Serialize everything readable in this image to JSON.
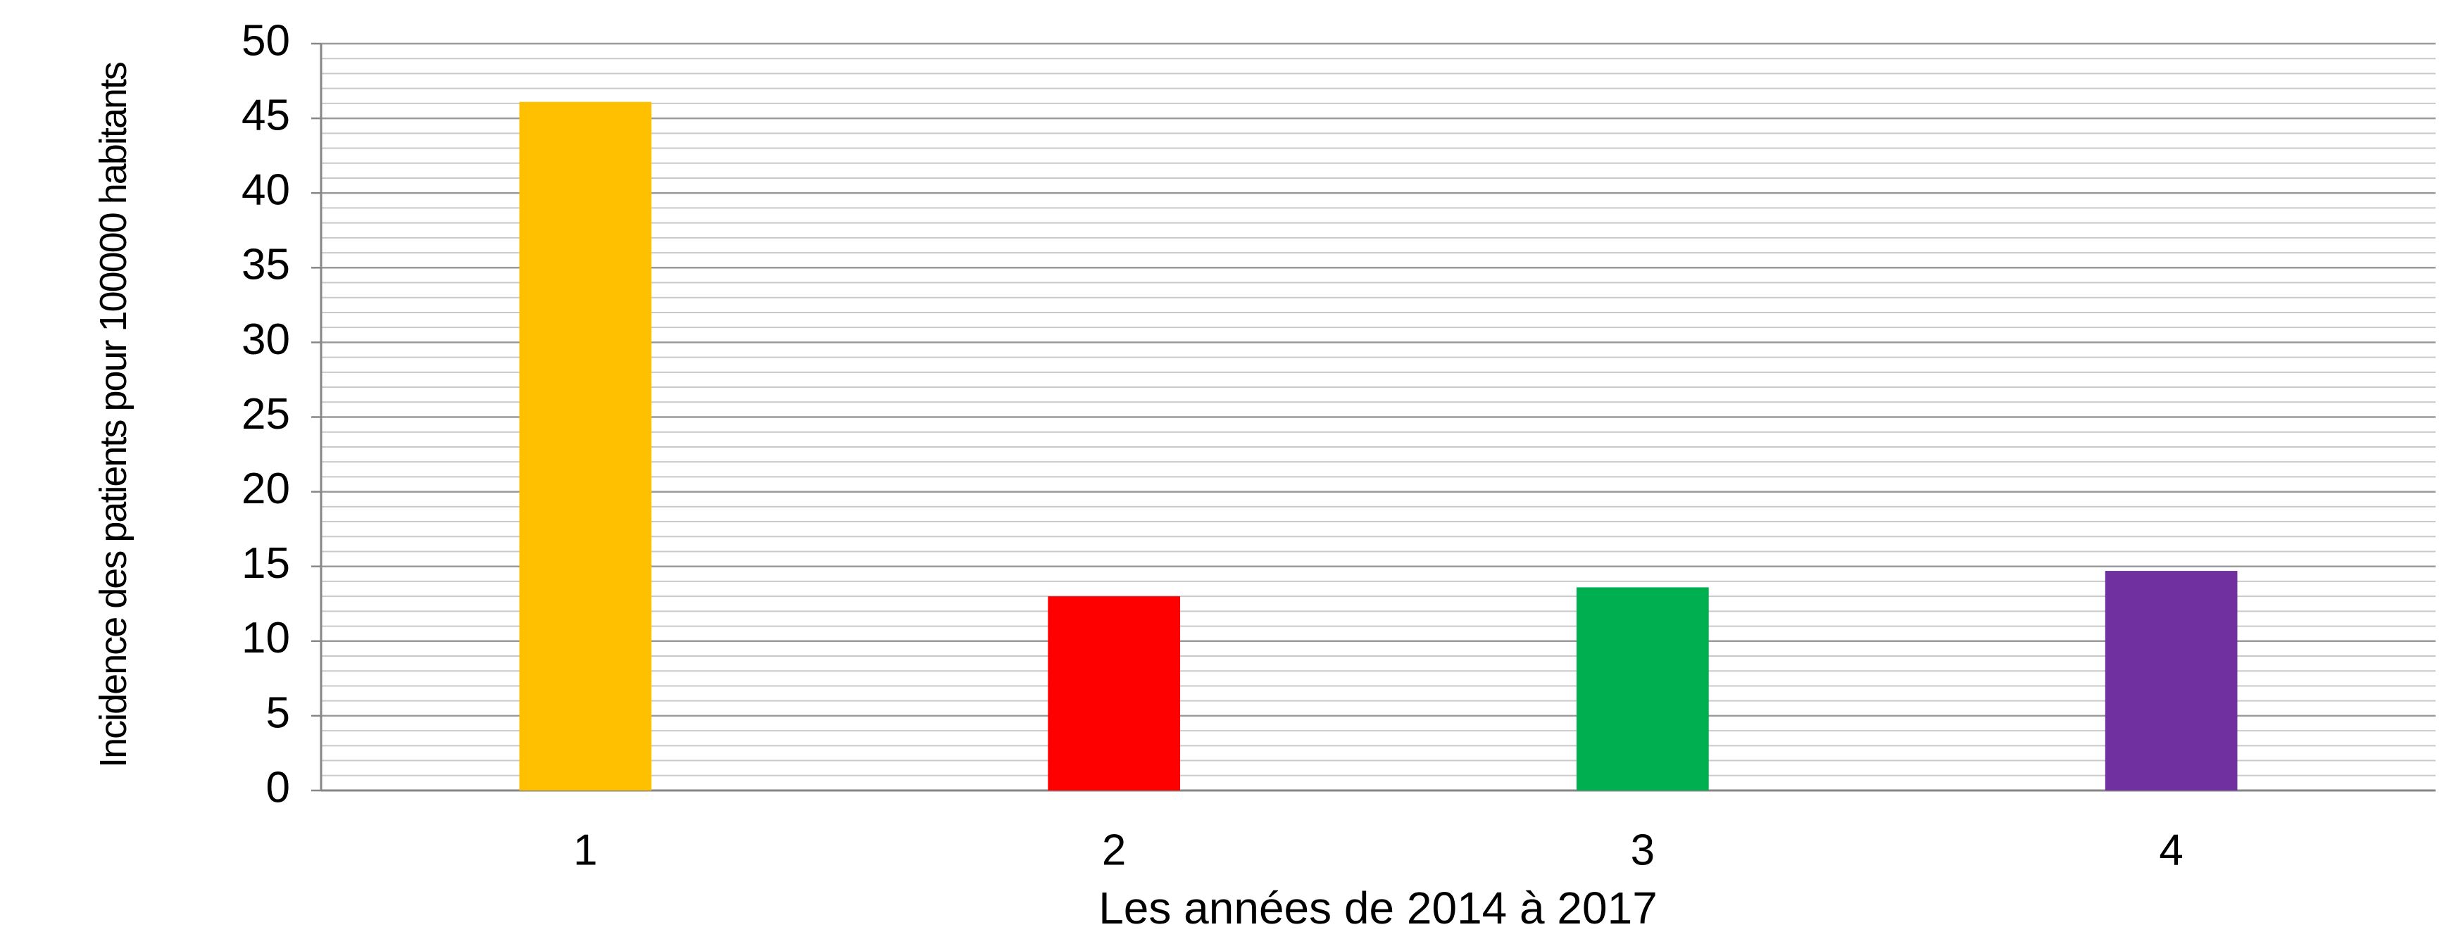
{
  "chart_data": {
    "type": "bar",
    "categories": [
      "1",
      "2",
      "3",
      "4"
    ],
    "values": [
      46.1,
      13.0,
      13.6,
      14.7
    ],
    "colors": [
      "#ffc000",
      "#ff0000",
      "#00b050",
      "#7030a0"
    ],
    "x_label": "Les années de 2014 à 2017",
    "y_label": "Incidence des patients pour 100000 habitants",
    "ylim": [
      0,
      50
    ],
    "yticks": [
      0,
      5,
      10,
      15,
      20,
      25,
      30,
      35,
      40,
      45,
      50
    ],
    "grid": true,
    "minor_grid": true
  }
}
